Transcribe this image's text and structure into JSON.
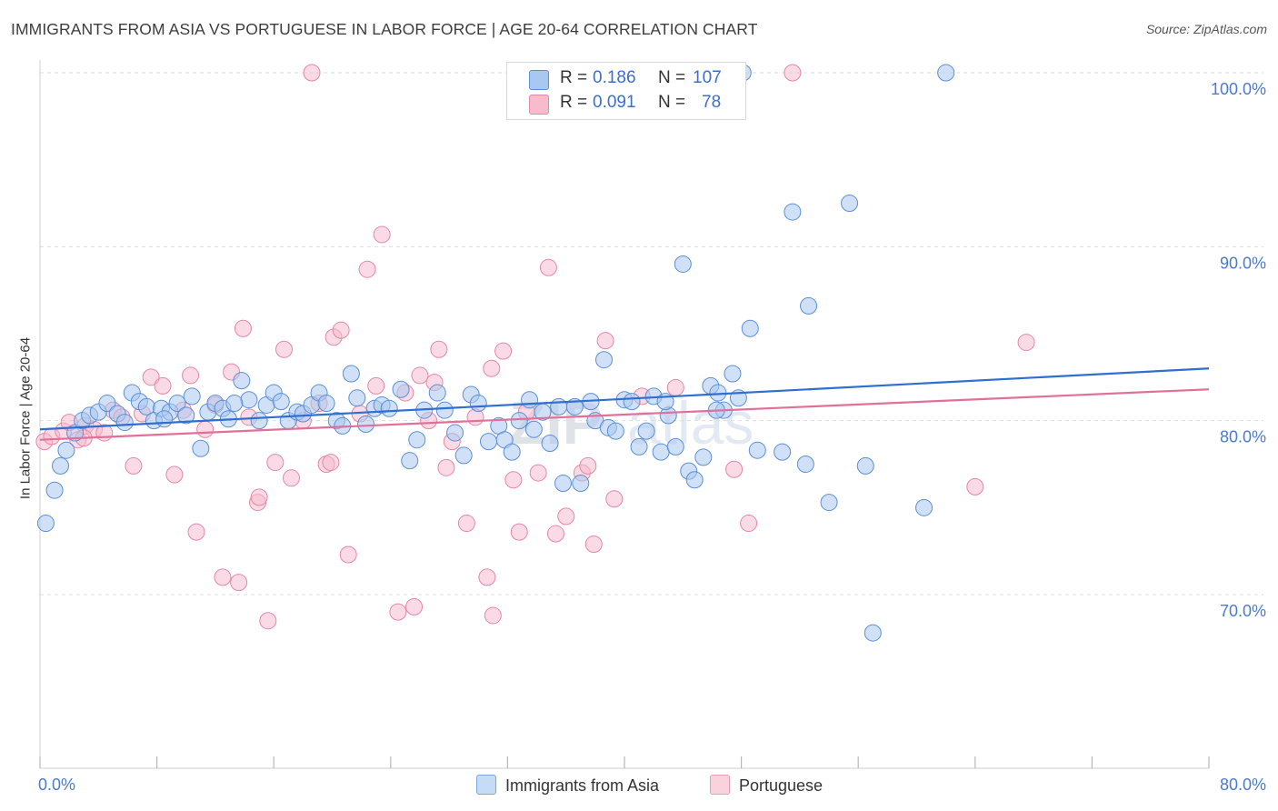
{
  "title": "IMMIGRANTS FROM ASIA VS PORTUGUESE IN LABOR FORCE | AGE 20-64 CORRELATION CHART",
  "source": "Source: ZipAtlas.com",
  "watermark": "ZIPatlas",
  "colors": {
    "blue_fill": "#a9c8f0",
    "blue_stroke": "#5b8fd6",
    "blue_line": "#2f6fcf",
    "pink_fill": "#f6bccd",
    "pink_stroke": "#e588a4",
    "pink_line": "#e0709a",
    "axis_text": "#4a7bd0",
    "grid": "#dddddd"
  },
  "legend_top": {
    "rows": [
      {
        "r_label": "R =",
        "r_value": "0.186",
        "n_label": "N =",
        "n_value": "107"
      },
      {
        "r_label": "R =",
        "r_value": "0.091",
        "n_label": "N =",
        "n_value": "78"
      }
    ]
  },
  "legend_bottom": [
    "Immigrants from Asia",
    "Portuguese"
  ],
  "chart_data": {
    "type": "scatter",
    "xlabel": "",
    "ylabel": "In Labor Force | Age 20-64",
    "xlim": [
      0,
      80
    ],
    "ylim": [
      60,
      104
    ],
    "x_tick_labels": [
      {
        "value": 0,
        "label": "0.0%"
      },
      {
        "value": 80,
        "label": "80.0%"
      }
    ],
    "y_tick_labels": [
      {
        "value": 70,
        "label": "70.0%"
      },
      {
        "value": 80,
        "label": "80.0%"
      },
      {
        "value": 90,
        "label": "90.0%"
      },
      {
        "value": 100,
        "label": "100.0%"
      }
    ],
    "x_minor_ticks": [
      0,
      8,
      16,
      24,
      32,
      40,
      48,
      56,
      64,
      72,
      80
    ],
    "grid": true,
    "series": [
      {
        "name": "Immigrants from Asia",
        "color": "blue",
        "R": 0.186,
        "N": 107,
        "trend": {
          "x": [
            0,
            80
          ],
          "y": [
            79.5,
            83.0
          ]
        },
        "points": [
          [
            0.4,
            74.1
          ],
          [
            1.0,
            76.0
          ],
          [
            1.4,
            77.4
          ],
          [
            1.8,
            78.3
          ],
          [
            2.4,
            79.3
          ],
          [
            2.9,
            80.0
          ],
          [
            3.4,
            80.3
          ],
          [
            4.0,
            80.5
          ],
          [
            4.6,
            81.0
          ],
          [
            5.3,
            80.4
          ],
          [
            5.8,
            79.9
          ],
          [
            6.3,
            81.6
          ],
          [
            6.8,
            81.1
          ],
          [
            7.3,
            80.8
          ],
          [
            7.8,
            80.0
          ],
          [
            8.3,
            80.7
          ],
          [
            8.9,
            80.5
          ],
          [
            9.4,
            81.0
          ],
          [
            10.0,
            80.3
          ],
          [
            10.4,
            81.4
          ],
          [
            11.0,
            78.4
          ],
          [
            11.5,
            80.5
          ],
          [
            12.0,
            81.0
          ],
          [
            12.5,
            80.7
          ],
          [
            12.9,
            80.1
          ],
          [
            13.8,
            82.3
          ],
          [
            14.3,
            81.2
          ],
          [
            15.0,
            80.0
          ],
          [
            15.5,
            80.9
          ],
          [
            16.0,
            81.6
          ],
          [
            16.5,
            81.1
          ],
          [
            17.0,
            80.0
          ],
          [
            17.6,
            80.5
          ],
          [
            18.0,
            80.4
          ],
          [
            18.6,
            80.9
          ],
          [
            19.1,
            81.6
          ],
          [
            19.6,
            81.0
          ],
          [
            20.3,
            80.0
          ],
          [
            20.7,
            79.7
          ],
          [
            21.3,
            82.7
          ],
          [
            21.7,
            81.3
          ],
          [
            22.3,
            79.8
          ],
          [
            22.9,
            80.7
          ],
          [
            23.4,
            80.9
          ],
          [
            23.9,
            80.7
          ],
          [
            24.7,
            81.8
          ],
          [
            25.3,
            77.7
          ],
          [
            25.8,
            78.9
          ],
          [
            26.3,
            80.6
          ],
          [
            27.2,
            81.6
          ],
          [
            27.7,
            80.6
          ],
          [
            28.4,
            79.3
          ],
          [
            29.0,
            78.0
          ],
          [
            29.5,
            81.5
          ],
          [
            30.0,
            81.0
          ],
          [
            30.7,
            78.8
          ],
          [
            31.4,
            79.7
          ],
          [
            31.8,
            78.9
          ],
          [
            32.3,
            78.2
          ],
          [
            32.8,
            80.0
          ],
          [
            33.5,
            81.2
          ],
          [
            33.8,
            79.5
          ],
          [
            34.4,
            80.5
          ],
          [
            34.9,
            78.7
          ],
          [
            35.5,
            80.8
          ],
          [
            35.8,
            76.4
          ],
          [
            37.0,
            76.4
          ],
          [
            37.7,
            81.1
          ],
          [
            38.0,
            80.0
          ],
          [
            38.6,
            83.5
          ],
          [
            38.9,
            79.6
          ],
          [
            39.4,
            79.4
          ],
          [
            40.0,
            81.2
          ],
          [
            40.5,
            81.1
          ],
          [
            41.0,
            78.5
          ],
          [
            41.5,
            79.4
          ],
          [
            42.0,
            81.4
          ],
          [
            42.5,
            78.2
          ],
          [
            43.0,
            80.3
          ],
          [
            43.5,
            78.5
          ],
          [
            44.0,
            89.0
          ],
          [
            44.4,
            77.1
          ],
          [
            44.8,
            76.6
          ],
          [
            45.4,
            77.9
          ],
          [
            45.9,
            82.0
          ],
          [
            46.4,
            81.6
          ],
          [
            46.8,
            80.6
          ],
          [
            47.4,
            82.7
          ],
          [
            47.8,
            81.3
          ],
          [
            48.1,
            100.0
          ],
          [
            48.6,
            85.3
          ],
          [
            49.1,
            78.3
          ],
          [
            50.8,
            78.2
          ],
          [
            51.5,
            92.0
          ],
          [
            52.4,
            77.5
          ],
          [
            52.6,
            86.6
          ],
          [
            54.0,
            75.3
          ],
          [
            55.4,
            92.5
          ],
          [
            56.5,
            77.4
          ],
          [
            57.0,
            67.8
          ],
          [
            60.5,
            75.0
          ],
          [
            62.0,
            100.0
          ],
          [
            46.3,
            80.6
          ],
          [
            42.8,
            81.1
          ],
          [
            36.6,
            80.8
          ],
          [
            13.3,
            81.0
          ],
          [
            8.5,
            80.1
          ]
        ]
      },
      {
        "name": "Portuguese",
        "color": "pink",
        "R": 0.091,
        "N": 78,
        "trend": {
          "x": [
            0,
            80
          ],
          "y": [
            78.9,
            81.8
          ]
        },
        "points": [
          [
            0.3,
            78.8
          ],
          [
            0.8,
            79.1
          ],
          [
            1.6,
            79.4
          ],
          [
            2.0,
            79.9
          ],
          [
            2.6,
            78.9
          ],
          [
            3.1,
            79.7
          ],
          [
            3.7,
            79.5
          ],
          [
            4.4,
            79.3
          ],
          [
            5.0,
            80.6
          ],
          [
            5.6,
            80.2
          ],
          [
            6.4,
            77.4
          ],
          [
            7.0,
            80.4
          ],
          [
            7.6,
            82.5
          ],
          [
            8.4,
            82.0
          ],
          [
            9.2,
            76.9
          ],
          [
            9.8,
            80.6
          ],
          [
            10.3,
            82.6
          ],
          [
            10.7,
            73.6
          ],
          [
            11.3,
            79.5
          ],
          [
            12.0,
            80.9
          ],
          [
            12.5,
            71.0
          ],
          [
            13.1,
            82.8
          ],
          [
            13.6,
            70.7
          ],
          [
            13.9,
            85.3
          ],
          [
            14.3,
            80.2
          ],
          [
            14.9,
            75.3
          ],
          [
            15.0,
            75.6
          ],
          [
            15.6,
            68.5
          ],
          [
            16.1,
            77.6
          ],
          [
            16.7,
            84.1
          ],
          [
            17.2,
            76.7
          ],
          [
            18.0,
            80.0
          ],
          [
            18.6,
            100.0
          ],
          [
            19.1,
            81.0
          ],
          [
            19.6,
            77.5
          ],
          [
            19.9,
            77.6
          ],
          [
            20.1,
            84.8
          ],
          [
            20.6,
            85.2
          ],
          [
            21.1,
            72.3
          ],
          [
            21.9,
            80.4
          ],
          [
            22.4,
            88.7
          ],
          [
            23.0,
            82.0
          ],
          [
            23.4,
            90.7
          ],
          [
            24.5,
            69.0
          ],
          [
            25.0,
            81.6
          ],
          [
            25.6,
            69.3
          ],
          [
            26.0,
            82.6
          ],
          [
            26.6,
            80.0
          ],
          [
            27.0,
            82.2
          ],
          [
            27.3,
            84.1
          ],
          [
            27.8,
            77.3
          ],
          [
            28.2,
            78.8
          ],
          [
            29.2,
            74.1
          ],
          [
            29.8,
            80.2
          ],
          [
            30.6,
            71.0
          ],
          [
            30.9,
            83.0
          ],
          [
            31.0,
            68.8
          ],
          [
            31.7,
            84.0
          ],
          [
            32.4,
            76.6
          ],
          [
            32.8,
            73.6
          ],
          [
            33.3,
            80.5
          ],
          [
            34.1,
            77.0
          ],
          [
            34.8,
            88.8
          ],
          [
            35.3,
            73.5
          ],
          [
            36.0,
            74.5
          ],
          [
            37.1,
            77.0
          ],
          [
            37.5,
            77.4
          ],
          [
            37.9,
            72.9
          ],
          [
            38.7,
            84.6
          ],
          [
            39.3,
            75.5
          ],
          [
            41.2,
            81.4
          ],
          [
            43.5,
            81.9
          ],
          [
            47.5,
            77.2
          ],
          [
            48.5,
            74.1
          ],
          [
            51.5,
            100.0
          ],
          [
            64.0,
            76.2
          ],
          [
            67.5,
            84.5
          ],
          [
            3.0,
            79.0
          ]
        ]
      }
    ]
  }
}
